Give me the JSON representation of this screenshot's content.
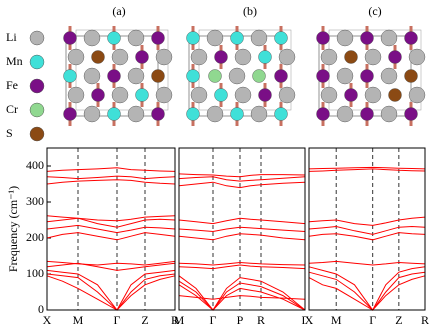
{
  "atoms": [
    {
      "label": "Li",
      "color": "#b4b4b4"
    },
    {
      "label": "Mn",
      "color": "#3fe0d8"
    },
    {
      "label": "Fe",
      "color": "#7a0f86"
    },
    {
      "label": "Cr",
      "color": "#90d890"
    },
    {
      "label": "S",
      "color": "#8b4a14"
    }
  ],
  "chart_data": [
    {
      "type": "line",
      "title": "(a)",
      "ylabel": "Frequency (cm⁻¹)",
      "color": "#ff0000",
      "xlim": [
        0,
        1.28
      ],
      "ylim": [
        0,
        450
      ],
      "yticks": [
        0,
        100,
        200,
        300,
        400
      ],
      "xticks": [
        {
          "value": 0,
          "label": "X"
        },
        {
          "value": 0.31,
          "label": "M"
        },
        {
          "value": 0.7,
          "label": "Γ"
        },
        {
          "value": 0.98,
          "label": "Z"
        },
        {
          "value": 1.28,
          "label": "R"
        }
      ],
      "x": [
        0,
        0.155,
        0.31,
        0.505,
        0.7,
        0.84,
        0.98,
        1.13,
        1.28
      ],
      "series": [
        {
          "values": [
            95,
            80,
            60,
            30,
            0,
            40,
            70,
            85,
            95
          ]
        },
        {
          "values": [
            100,
            95,
            90,
            50,
            0,
            50,
            85,
            95,
            100
          ]
        },
        {
          "values": [
            110,
            105,
            100,
            70,
            0,
            70,
            100,
            105,
            110
          ]
        },
        {
          "values": [
            120,
            125,
            130,
            120,
            110,
            115,
            120,
            125,
            130
          ]
        },
        {
          "values": [
            135,
            132,
            128,
            125,
            130,
            128,
            125,
            130,
            135
          ]
        },
        {
          "values": [
            200,
            210,
            215,
            205,
            195,
            205,
            215,
            210,
            205
          ]
        },
        {
          "values": [
            225,
            230,
            235,
            225,
            215,
            222,
            230,
            228,
            225
          ]
        },
        {
          "values": [
            245,
            250,
            255,
            240,
            230,
            240,
            250,
            252,
            250
          ]
        },
        {
          "values": [
            262,
            258,
            255,
            250,
            248,
            252,
            258,
            260,
            262
          ]
        },
        {
          "values": [
            350,
            355,
            358,
            360,
            362,
            360,
            355,
            352,
            350
          ]
        },
        {
          "values": [
            370,
            368,
            365,
            368,
            372,
            370,
            365,
            368,
            370
          ]
        },
        {
          "values": [
            385,
            388,
            390,
            392,
            395,
            390,
            388,
            386,
            385
          ]
        }
      ]
    },
    {
      "type": "line",
      "title": "(b)",
      "color": "#ff0000",
      "xlim": [
        0,
        1.26
      ],
      "ylim": [
        0,
        450
      ],
      "xticks": [
        {
          "value": 0,
          "label": "M"
        },
        {
          "value": 0.34,
          "label": "Γ"
        },
        {
          "value": 0.61,
          "label": "P"
        },
        {
          "value": 0.82,
          "label": "R"
        },
        {
          "value": 1.26,
          "label": "Γ"
        }
      ],
      "x": [
        0,
        0.17,
        0.34,
        0.475,
        0.61,
        0.715,
        0.82,
        1.04,
        1.26
      ],
      "series": [
        {
          "values": [
            70,
            40,
            0,
            40,
            60,
            55,
            50,
            30,
            0
          ]
        },
        {
          "values": [
            80,
            50,
            0,
            50,
            75,
            70,
            65,
            40,
            0
          ]
        },
        {
          "values": [
            95,
            60,
            0,
            60,
            90,
            85,
            80,
            50,
            0
          ]
        },
        {
          "values": [
            40,
            35,
            30,
            35,
            40,
            38,
            35,
            33,
            30
          ]
        },
        {
          "values": [
            120,
            118,
            115,
            120,
            125,
            122,
            120,
            118,
            115
          ]
        },
        {
          "values": [
            130,
            128,
            125,
            128,
            132,
            130,
            128,
            126,
            125
          ]
        },
        {
          "values": [
            205,
            200,
            195,
            205,
            212,
            210,
            208,
            200,
            195
          ]
        },
        {
          "values": [
            225,
            222,
            218,
            225,
            230,
            228,
            226,
            222,
            218
          ]
        },
        {
          "values": [
            250,
            245,
            240,
            248,
            255,
            252,
            250,
            245,
            240
          ]
        },
        {
          "values": [
            345,
            350,
            355,
            345,
            340,
            345,
            348,
            352,
            355
          ]
        },
        {
          "values": [
            365,
            368,
            370,
            362,
            358,
            360,
            362,
            366,
            370
          ]
        },
        {
          "values": [
            378,
            376,
            375,
            372,
            370,
            374,
            376,
            376,
            375
          ]
        }
      ]
    },
    {
      "type": "line",
      "title": "(c)",
      "color": "#ff0000",
      "xlim": [
        0,
        1.11
      ],
      "ylim": [
        0,
        450
      ],
      "xticks": [
        {
          "value": 0,
          "label": "X"
        },
        {
          "value": 0.26,
          "label": "M"
        },
        {
          "value": 0.61,
          "label": "Γ"
        },
        {
          "value": 0.86,
          "label": "Z"
        },
        {
          "value": 1.11,
          "label": "R"
        }
      ],
      "x": [
        0,
        0.13,
        0.26,
        0.435,
        0.61,
        0.735,
        0.86,
        0.985,
        1.11
      ],
      "series": [
        {
          "values": [
            90,
            70,
            60,
            30,
            0,
            40,
            70,
            85,
            95
          ]
        },
        {
          "values": [
            105,
            95,
            85,
            50,
            0,
            50,
            90,
            100,
            105
          ]
        },
        {
          "values": [
            120,
            110,
            100,
            70,
            0,
            70,
            105,
            115,
            120
          ]
        },
        {
          "values": [
            130,
            132,
            135,
            130,
            125,
            128,
            132,
            130,
            128
          ]
        },
        {
          "values": [
            205,
            210,
            212,
            205,
            195,
            205,
            215,
            212,
            210
          ]
        },
        {
          "values": [
            225,
            228,
            232,
            220,
            210,
            220,
            230,
            232,
            230
          ]
        },
        {
          "values": [
            245,
            248,
            250,
            240,
            235,
            242,
            250,
            255,
            258
          ]
        },
        {
          "values": [
            385,
            386,
            388,
            390,
            392,
            390,
            388,
            387,
            386
          ]
        },
        {
          "values": [
            392,
            393,
            394,
            395,
            396,
            395,
            394,
            393,
            392
          ]
        }
      ]
    }
  ]
}
